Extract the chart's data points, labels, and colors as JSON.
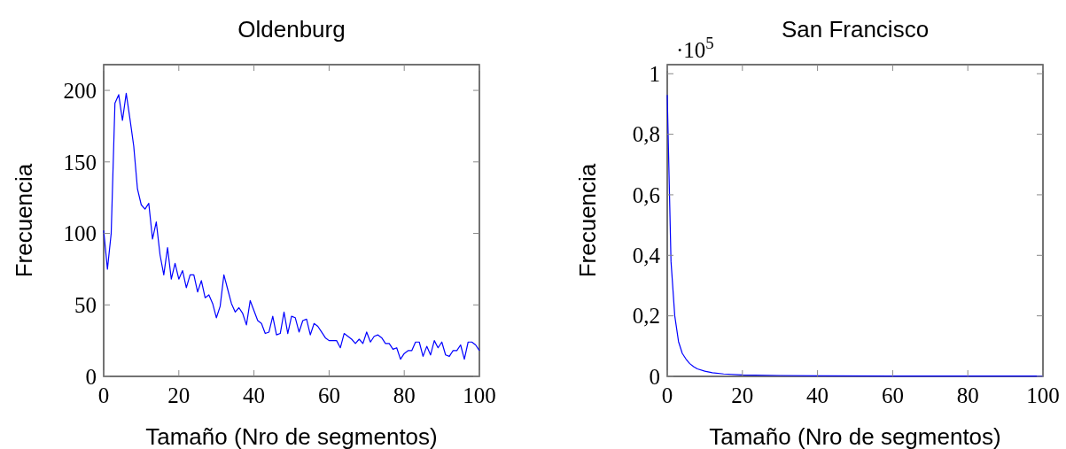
{
  "chart_data": [
    {
      "type": "line",
      "title": "Oldenburg",
      "xlabel": "Tamaño (Nro de segmentos)",
      "ylabel": "Frecuencia",
      "xlim": [
        0,
        100
      ],
      "ylim": [
        0,
        218
      ],
      "xticks": [
        0,
        20,
        40,
        60,
        80,
        100
      ],
      "yticks": [
        0,
        50,
        100,
        150,
        200
      ],
      "grid": false,
      "marker": "none",
      "line_style": "solid",
      "series": [
        {
          "color": "#0000ff",
          "x": [
            0,
            1,
            2,
            3,
            4,
            5,
            6,
            7,
            8,
            9,
            10,
            11,
            12,
            13,
            14,
            15,
            16,
            17,
            18,
            19,
            20,
            21,
            22,
            23,
            24,
            25,
            26,
            27,
            28,
            29,
            30,
            31,
            32,
            33,
            34,
            35,
            36,
            37,
            38,
            39,
            40,
            41,
            42,
            43,
            44,
            45,
            46,
            47,
            48,
            49,
            50,
            51,
            52,
            53,
            54,
            55,
            56,
            57,
            58,
            59,
            60,
            61,
            62,
            63,
            64,
            65,
            66,
            67,
            68,
            69,
            70,
            71,
            72,
            73,
            74,
            75,
            76,
            77,
            78,
            79,
            80,
            81,
            82,
            83,
            84,
            85,
            86,
            87,
            88,
            89,
            90,
            91,
            92,
            93,
            94,
            95,
            96,
            97,
            98,
            99,
            100
          ],
          "values": [
            102,
            75,
            100,
            191,
            197,
            179,
            198,
            180,
            161,
            131,
            120,
            117,
            121,
            96,
            108,
            85,
            71,
            90,
            68,
            79,
            68,
            74,
            62,
            71,
            71,
            59,
            67,
            55,
            57,
            51,
            41,
            49,
            71,
            61,
            51,
            45,
            48,
            44,
            36,
            53,
            46,
            39,
            37,
            30,
            31,
            42,
            29,
            30,
            45,
            30,
            42,
            41,
            31,
            39,
            40,
            29,
            37,
            35,
            31,
            27,
            25,
            25,
            25,
            20,
            30,
            28,
            26,
            23,
            26,
            23,
            31,
            24,
            28,
            29,
            27,
            23,
            23,
            19,
            20,
            12,
            16,
            18,
            18,
            24,
            24,
            14,
            21,
            15,
            25,
            20,
            24,
            15,
            14,
            18,
            18,
            22,
            12,
            24,
            24,
            22,
            18
          ]
        }
      ]
    },
    {
      "type": "line",
      "title": "San Francisco",
      "xlabel": "Tamaño (Nro de segmentos)",
      "ylabel": "Frecuencia",
      "annotations": [
        "·10$^{5}$"
      ],
      "xlim": [
        0,
        100
      ],
      "ylim": [
        0,
        1.03
      ],
      "xticks": [
        0,
        20,
        40,
        60,
        80,
        100
      ],
      "yticks": [
        0,
        {
          "value": 0.2,
          "label": "0,2"
        },
        {
          "value": 0.4,
          "label": "0,4"
        },
        {
          "value": 0.6,
          "label": "0,6"
        },
        {
          "value": 0.8,
          "label": "0,8"
        },
        1
      ],
      "grid": false,
      "marker": "none",
      "line_style": "solid",
      "series": [
        {
          "color": "#0000ff",
          "x": [
            0,
            1,
            2,
            3,
            4,
            5,
            6,
            7,
            8,
            10,
            12,
            15,
            20,
            30,
            40,
            60,
            80,
            100
          ],
          "values": [
            0.93,
            0.38,
            0.2,
            0.115,
            0.076,
            0.057,
            0.042,
            0.032,
            0.025,
            0.017,
            0.012,
            0.008,
            0.005,
            0.003,
            0.002,
            0.001,
            0.001,
            0.001
          ]
        }
      ]
    }
  ]
}
